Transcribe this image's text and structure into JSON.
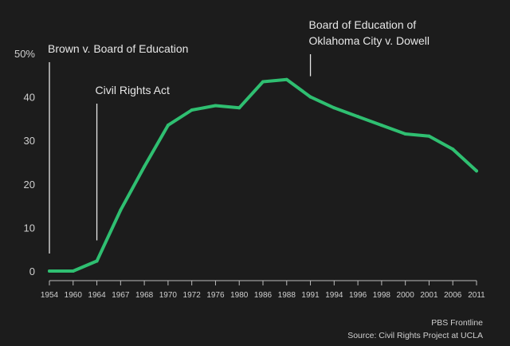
{
  "chart_data": {
    "type": "line",
    "x": [
      "1954",
      "1960",
      "1964",
      "1967",
      "1968",
      "1970",
      "1972",
      "1976",
      "1980",
      "1986",
      "1988",
      "1991",
      "1994",
      "1996",
      "1998",
      "2000",
      "2001",
      "2006",
      "2011"
    ],
    "series": [
      {
        "values": [
          0,
          0,
          2.3,
          14,
          24,
          33.5,
          37,
          38,
          37.5,
          43.5,
          44,
          40,
          37.5,
          35.5,
          33.5,
          31.5,
          31,
          28,
          23
        ]
      }
    ],
    "ylim": [
      0,
      50
    ],
    "yticks": [
      0,
      10,
      20,
      30,
      40,
      50
    ],
    "ytick_labels": [
      "0",
      "10",
      "20",
      "30",
      "40",
      "50%"
    ],
    "line_color": "#2fbf71",
    "grid": false,
    "annotations": [
      {
        "x": "1954",
        "lines": [
          "Brown v. Board of Education"
        ]
      },
      {
        "x": "1964",
        "lines": [
          "Civil Rights Act"
        ]
      },
      {
        "x": "1991",
        "lines": [
          "Board of Education of",
          "Oklahoma City v. Dowell"
        ]
      }
    ],
    "credit": [
      "PBS Frontline",
      "Source: Civil Rights Project at UCLA"
    ]
  }
}
